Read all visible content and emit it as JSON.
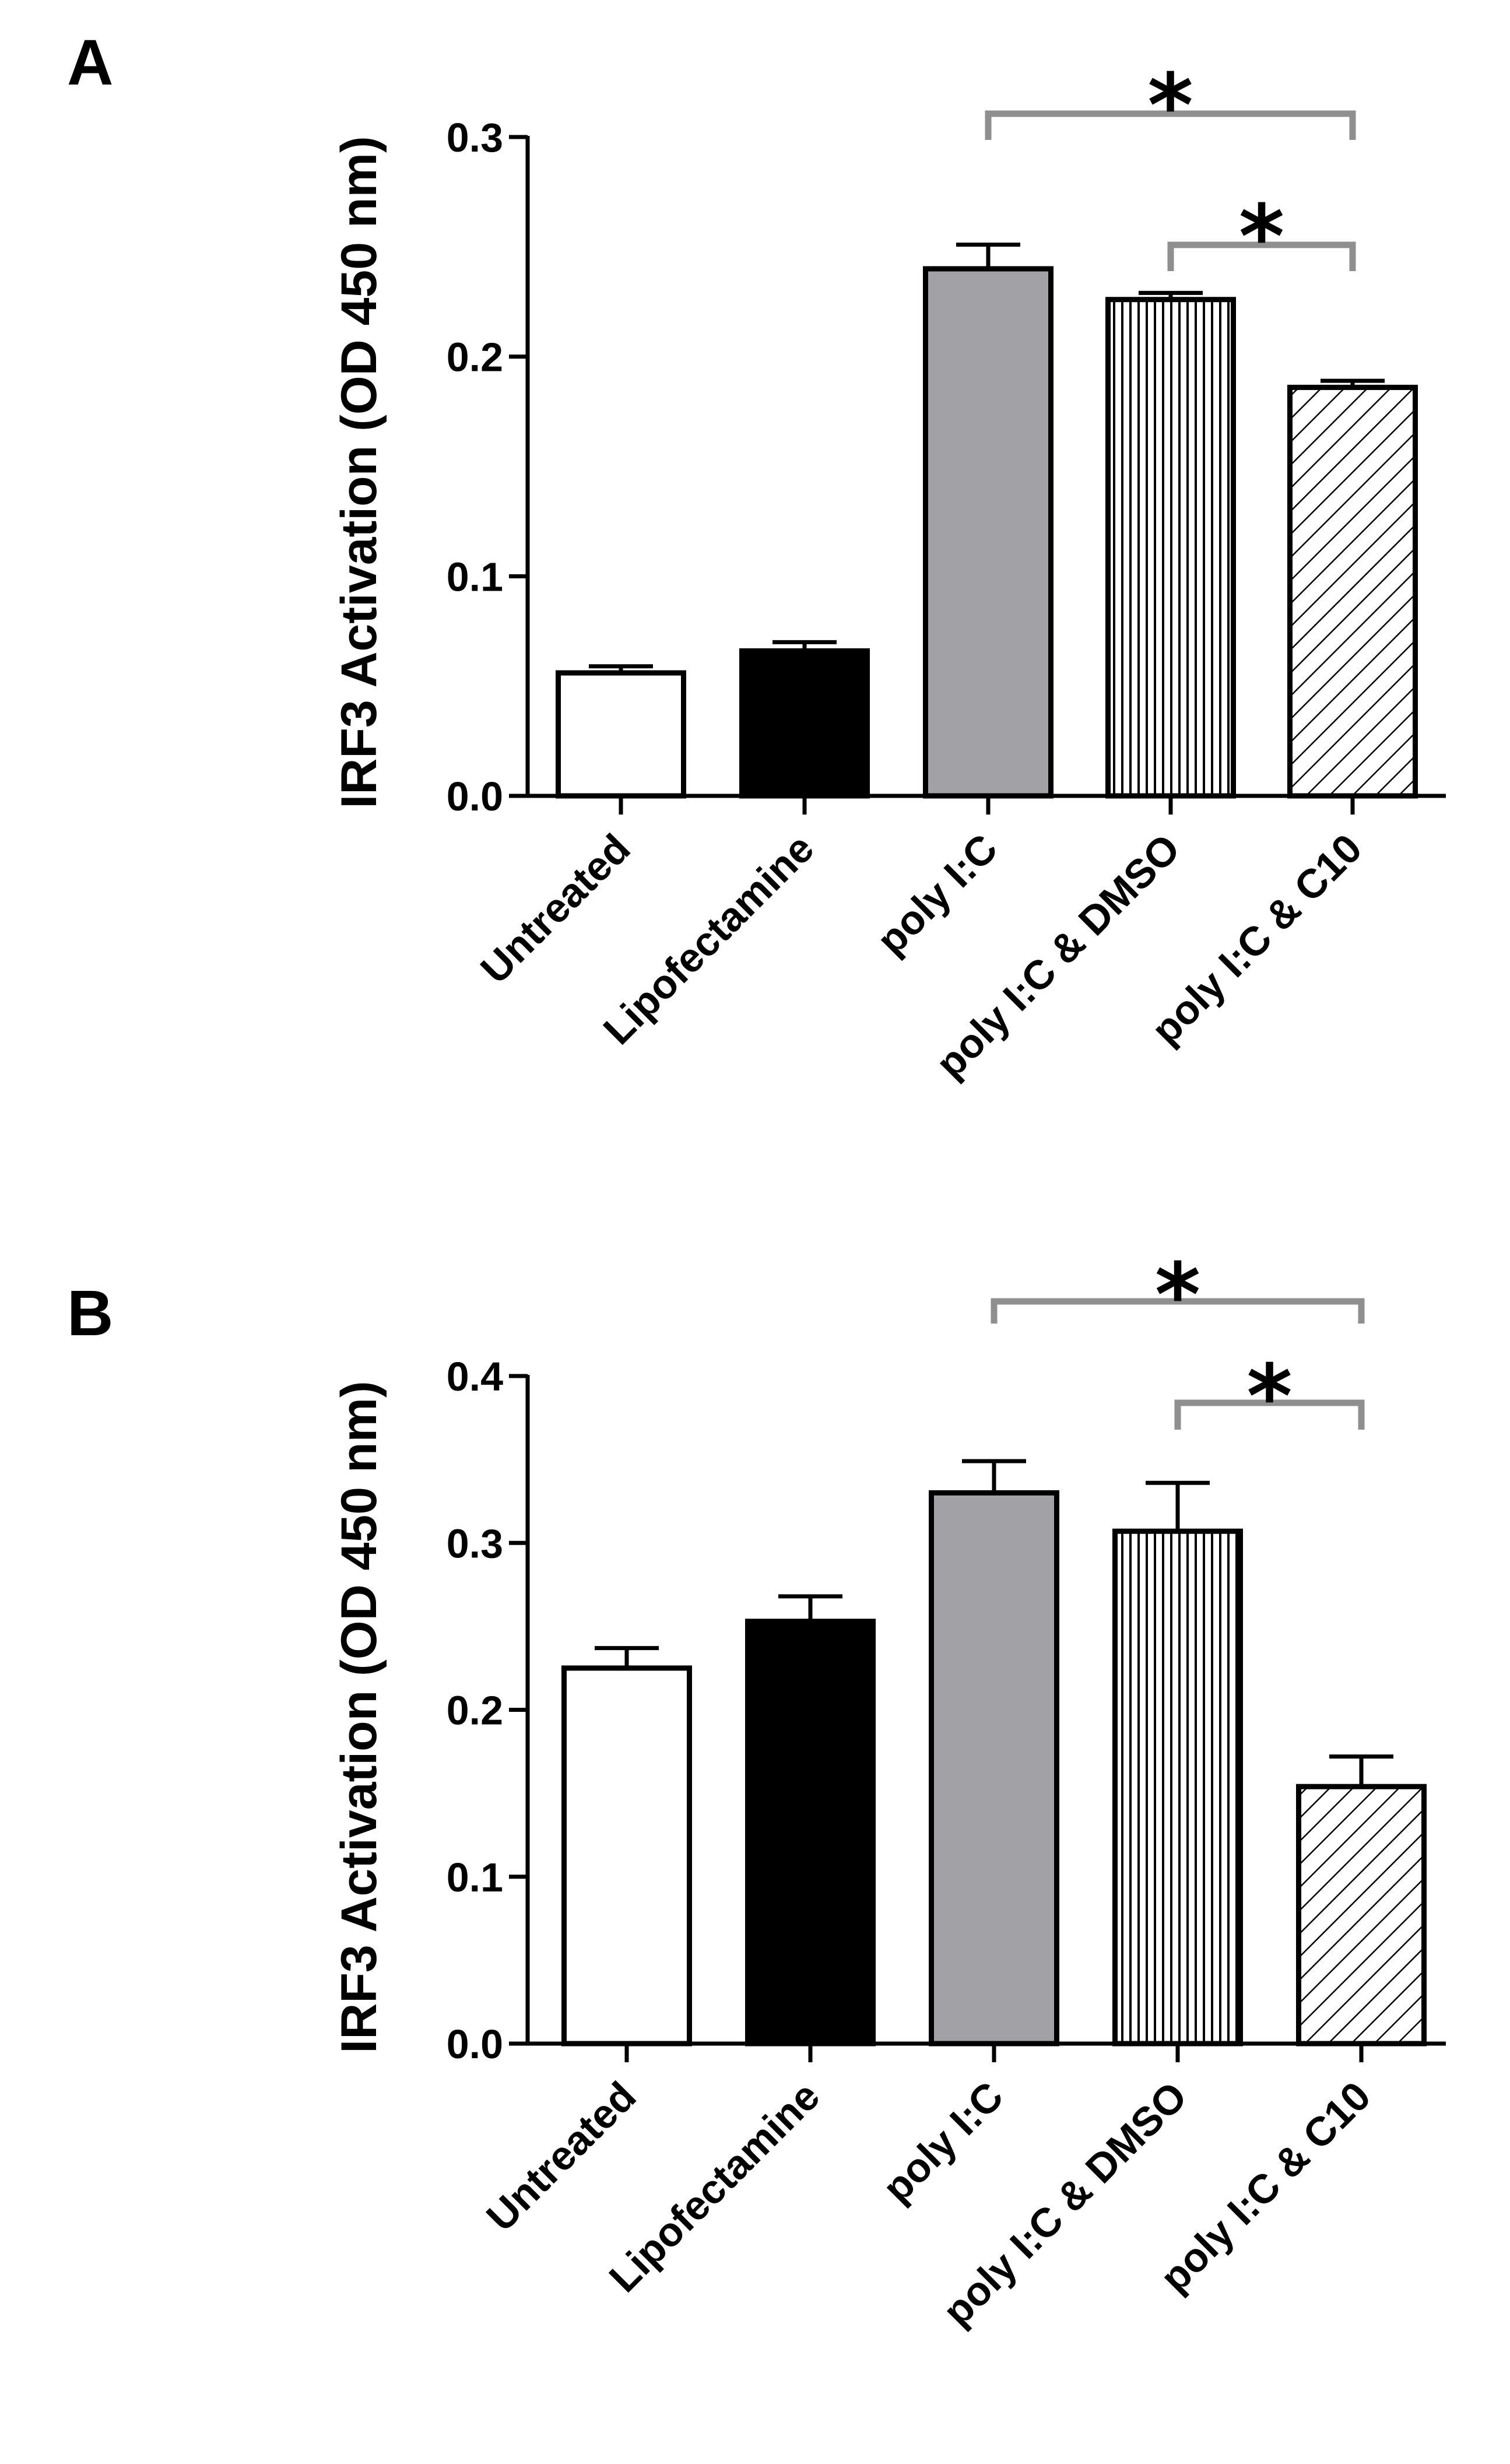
{
  "chart_data": [
    {
      "panel": "A",
      "type": "bar",
      "ylabel": "IRF3 Activation (OD 450 nm)",
      "xlabel": "",
      "ylim": [
        0,
        0.3
      ],
      "yticks": [
        "0.0",
        "0.1",
        "0.2",
        "0.3"
      ],
      "categories": [
        "Untreated",
        "Lipofectamine",
        "poly I:C",
        "poly I:C & DMSO",
        "poly I:C & C10"
      ],
      "values": [
        0.056,
        0.066,
        0.24,
        0.226,
        0.186
      ],
      "errors": [
        0.003,
        0.004,
        0.011,
        0.003,
        0.003
      ],
      "fills": [
        "white",
        "black",
        "gray",
        "vertical-lines",
        "diagonal-lines"
      ],
      "significance": [
        {
          "from": 2,
          "to": 4,
          "label": "*"
        },
        {
          "from": 3,
          "to": 4,
          "label": "*"
        }
      ]
    },
    {
      "panel": "B",
      "type": "bar",
      "ylabel": "IRF3 Activation (OD 450 nm)",
      "xlabel": "",
      "ylim": [
        0,
        0.4
      ],
      "yticks": [
        "0.0",
        "0.1",
        "0.2",
        "0.3",
        "0.4"
      ],
      "categories": [
        "Untreated",
        "Lipofectamine",
        "poly I:C",
        "poly I:C & DMSO",
        "poly I:C & C10"
      ],
      "values": [
        0.225,
        0.253,
        0.33,
        0.307,
        0.154
      ],
      "errors": [
        0.012,
        0.015,
        0.019,
        0.029,
        0.018
      ],
      "fills": [
        "white",
        "black",
        "gray",
        "vertical-lines",
        "diagonal-lines"
      ],
      "significance": [
        {
          "from": 2,
          "to": 4,
          "label": "*"
        },
        {
          "from": 3,
          "to": 4,
          "label": "*"
        }
      ]
    }
  ],
  "colors": {
    "bar_gray": "#a2a1a6",
    "bracket": "#8f8f8f",
    "ink": "#000000"
  }
}
